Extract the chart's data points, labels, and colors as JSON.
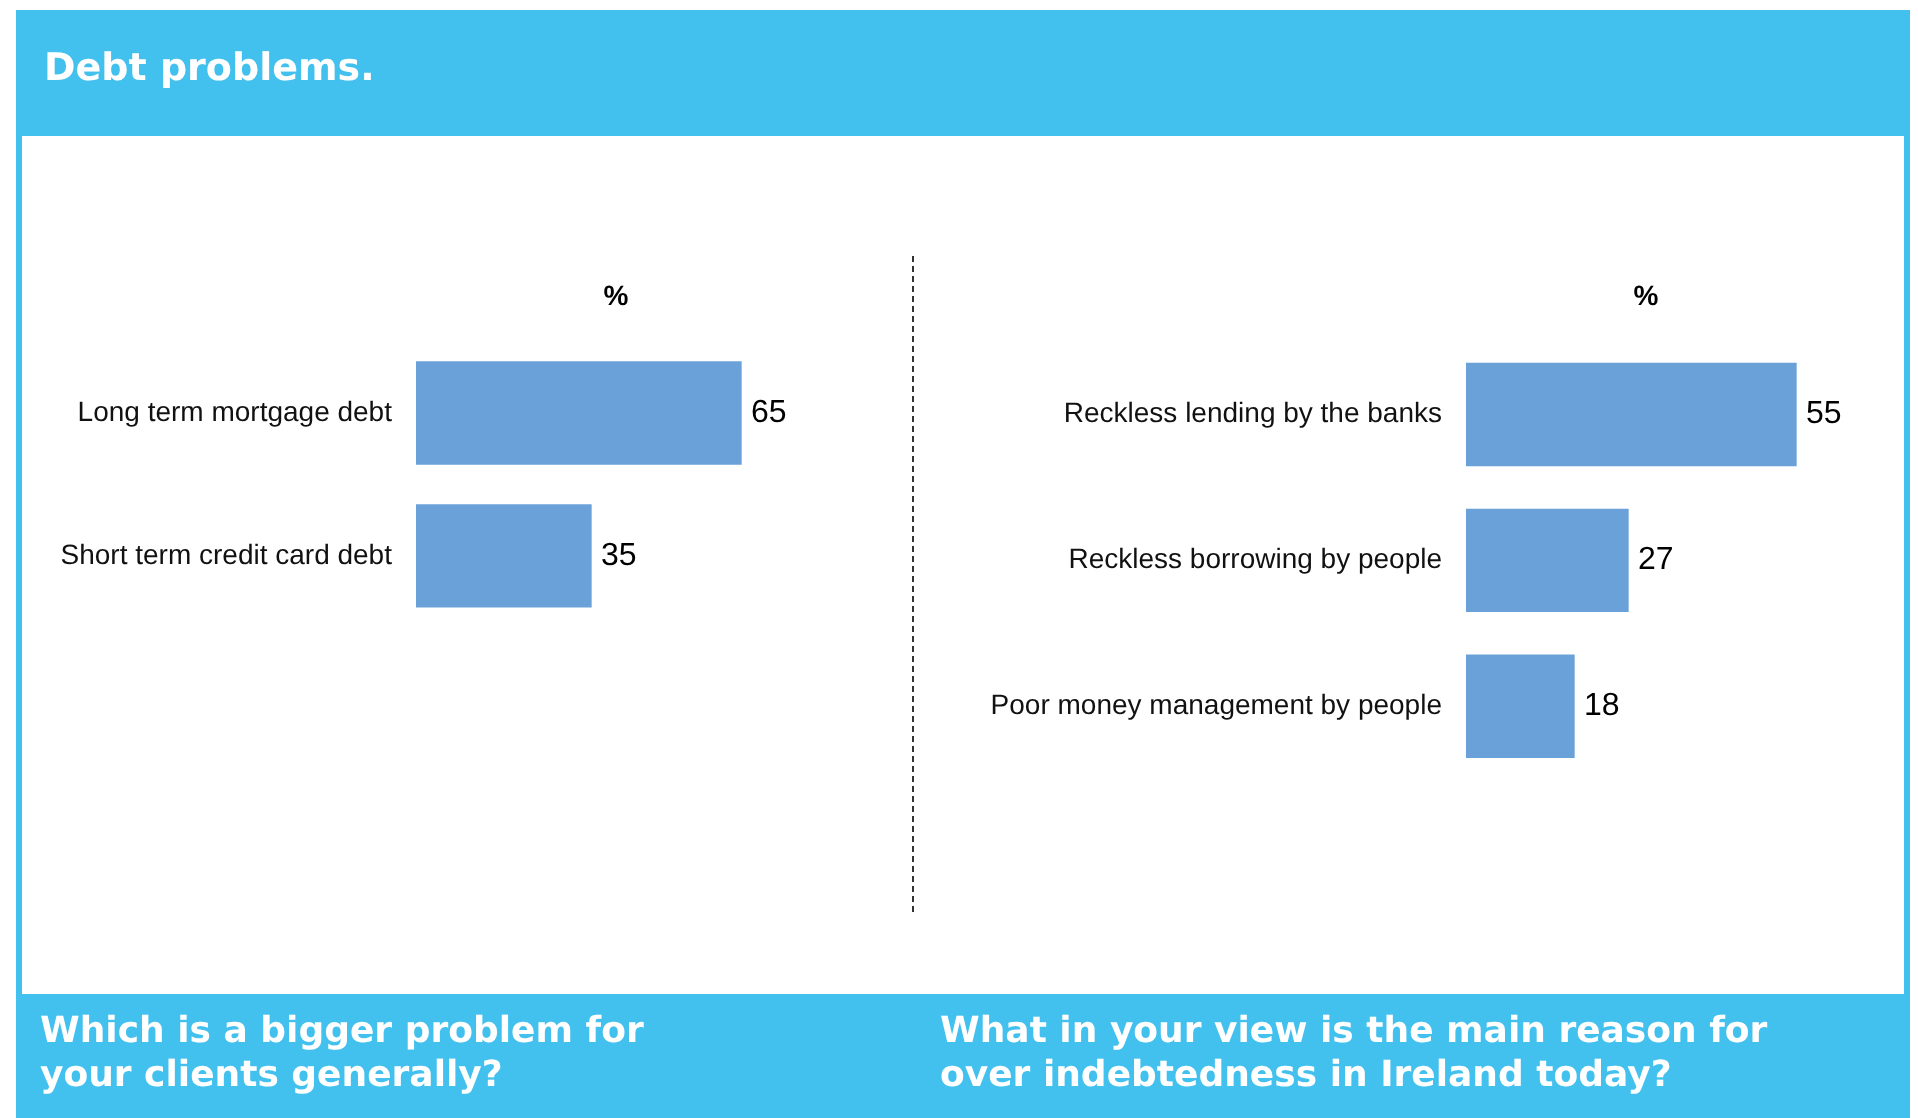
{
  "chart_data": [
    {
      "type": "other",
      "title": "Debt problems."
    },
    {
      "type": "bar",
      "orientation": "horizontal",
      "title": "Which is a bigger problem for your clients generally?",
      "xlabel": "%",
      "categories": [
        "Long term mortgage debt",
        "Short term credit card debt"
      ],
      "values": [
        65,
        35
      ],
      "color": "#6aa1d8",
      "tick_labels": "y",
      "data_labels": true,
      "grid": false,
      "legend": false
    },
    {
      "type": "bar",
      "orientation": "horizontal",
      "title": "What in your view is the main reason for over indebtedness in Ireland today?",
      "xlabel": "%",
      "categories": [
        "Reckless lending by the banks",
        "Reckless borrowing by people",
        "Poor money management by people"
      ],
      "values": [
        55,
        27,
        18
      ],
      "color": "#6aa1d8",
      "tick_labels": "y",
      "data_labels": true,
      "grid": false,
      "legend": false
    }
  ]
}
